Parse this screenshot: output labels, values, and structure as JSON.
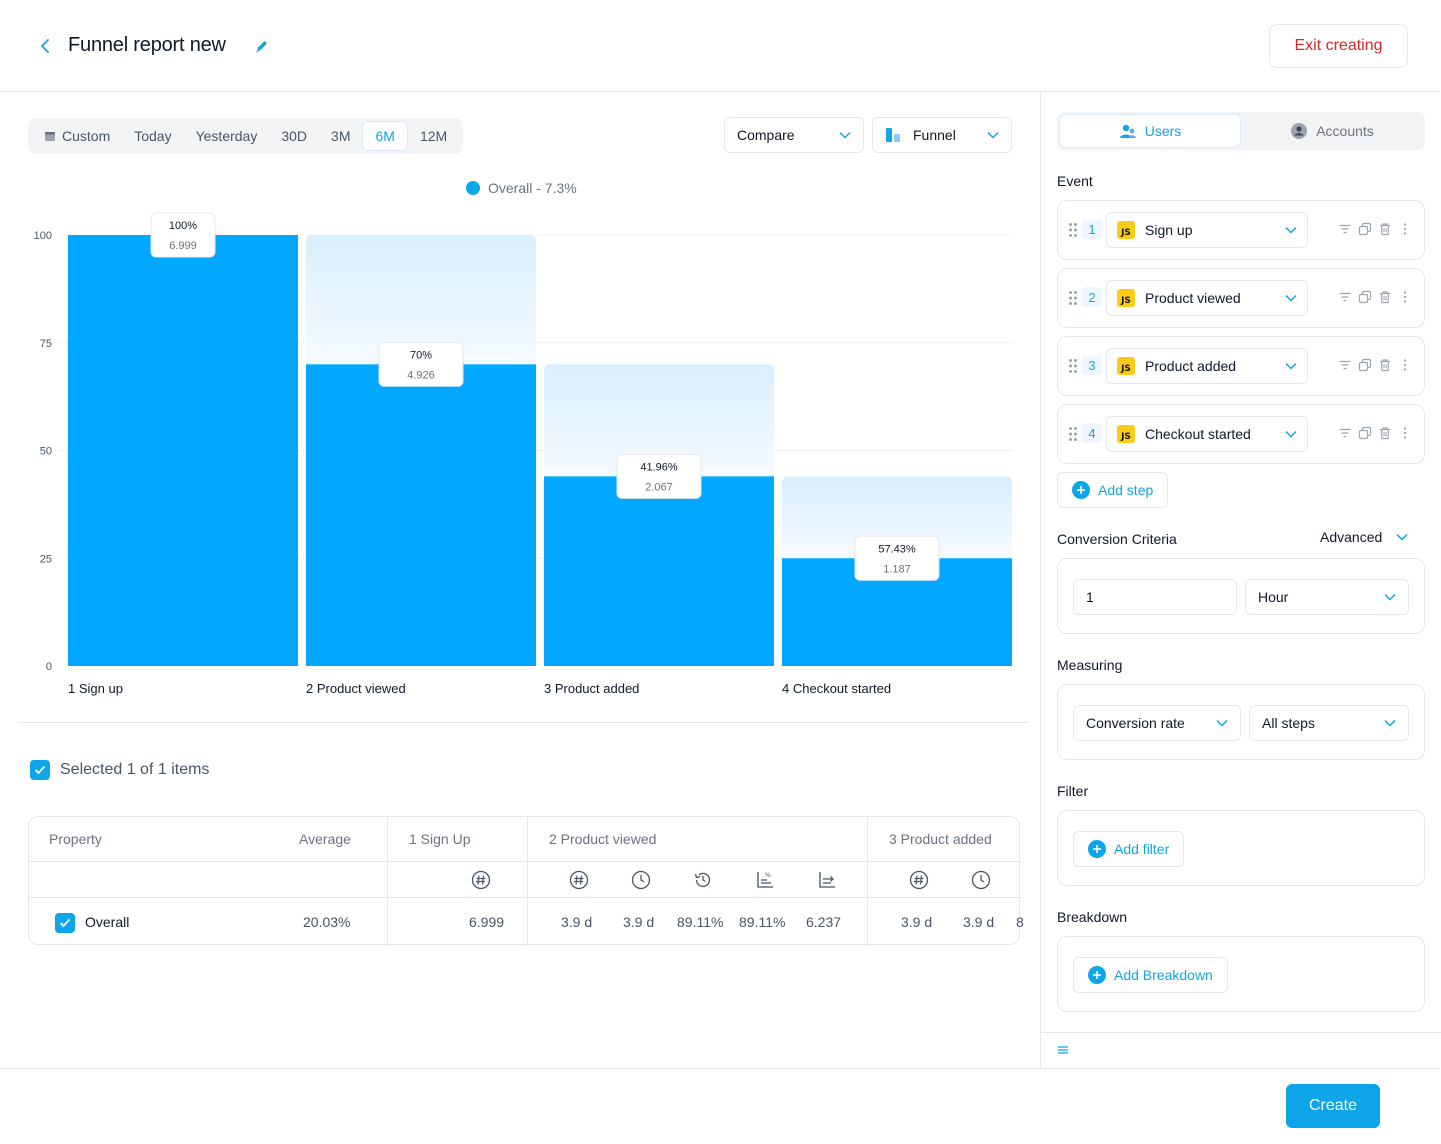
{
  "header": {
    "title": "Funnel report new",
    "exit_label": "Exit creating"
  },
  "toolbar": {
    "ranges": [
      "Custom",
      "Today",
      "Yesterday",
      "30D",
      "3M",
      "6M",
      "12M"
    ],
    "active_range": "6M",
    "compare_label": "Compare",
    "chart_type_label": "Funnel"
  },
  "legend": {
    "label": "Overall - 7.3%"
  },
  "chart_data": {
    "type": "bar",
    "categories": [
      "1 Sign up",
      "2 Product viewed",
      "3 Product added",
      "4 Checkout started"
    ],
    "values": [
      100,
      70,
      44,
      25
    ],
    "ghost_values": [
      100,
      100,
      70,
      44
    ],
    "data_labels": [
      {
        "pct": "100%",
        "count": "6.999"
      },
      {
        "pct": "70%",
        "count": "4.926"
      },
      {
        "pct": "41.96%",
        "count": "2.067"
      },
      {
        "pct": "57.43%",
        "count": "1.187"
      }
    ],
    "yticks": [
      "100",
      "75",
      "50",
      "25",
      "0"
    ],
    "ylim": [
      0,
      100
    ],
    "grid": true,
    "bar_color": "#02a8ff",
    "ghost_color": "#e0f2fe"
  },
  "selection": {
    "label": "Selected 1 of 1 items"
  },
  "table": {
    "headers": {
      "property": "Property",
      "average": "Average",
      "step1": "1 Sign Up",
      "step2": "2 Product viewed",
      "step3": "3 Product added"
    },
    "row": {
      "name": "Overall",
      "average": "20.03%",
      "s1": "6.999",
      "s2_a": "3.9 d",
      "s2_b": "3.9 d",
      "s2_c": "89.11%",
      "s2_d": "89.11%",
      "s2_e": "6.237",
      "s3_a": "3.9 d",
      "s3_b": "3.9 d",
      "s3_c": "8"
    }
  },
  "panel": {
    "tabs": {
      "users": "Users",
      "accounts": "Accounts"
    },
    "event_label": "Event",
    "steps": [
      {
        "num": "1",
        "name": "Sign up"
      },
      {
        "num": "2",
        "name": "Product viewed"
      },
      {
        "num": "3",
        "name": "Product added"
      },
      {
        "num": "4",
        "name": "Checkout started"
      }
    ],
    "js_badge": "JS",
    "add_step": "Add step",
    "conversion_label": "Conversion Criteria",
    "advanced_label": "Advanced",
    "window_value": "1",
    "window_unit": "Hour",
    "measuring_label": "Measuring",
    "measure_metric": "Conversion rate",
    "measure_steps": "All steps",
    "filter_label": "Filter",
    "add_filter": "Add filter",
    "breakdown_label": "Breakdown",
    "add_breakdown": "Add Breakdown"
  },
  "footer": {
    "create_label": "Create"
  }
}
